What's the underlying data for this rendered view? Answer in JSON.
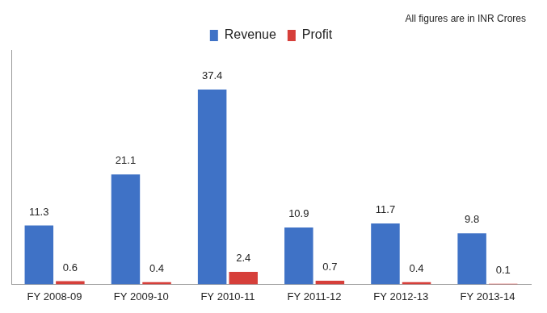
{
  "chart_data": {
    "type": "bar",
    "annotations": [
      "All figures are in INR Crores"
    ],
    "categories": [
      "FY 2008-09",
      "FY 2009-10",
      "FY 2010-11",
      "FY 2011-12",
      "FY 2012-13",
      "FY 2013-14"
    ],
    "series": [
      {
        "name": "Revenue",
        "color": "#3f72c6",
        "values": [
          11.3,
          21.1,
          37.4,
          10.9,
          11.7,
          9.8
        ]
      },
      {
        "name": "Profit",
        "color": "#d63f3a",
        "values": [
          0.6,
          0.4,
          2.4,
          0.7,
          0.4,
          0.1
        ]
      }
    ],
    "ylim": [
      0,
      45
    ],
    "grid": false,
    "legend": "top",
    "data_labels": true,
    "tick_labels": "x"
  }
}
